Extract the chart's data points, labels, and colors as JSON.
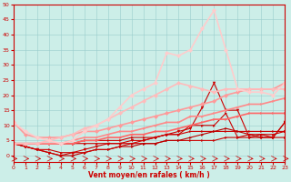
{
  "xlabel": "Vent moyen/en rafales ( km/h )",
  "xlim": [
    0,
    23
  ],
  "ylim": [
    -2,
    50
  ],
  "yticks": [
    0,
    5,
    10,
    15,
    20,
    25,
    30,
    35,
    40,
    45,
    50
  ],
  "xticks": [
    0,
    1,
    2,
    3,
    4,
    5,
    6,
    7,
    8,
    9,
    10,
    11,
    12,
    13,
    14,
    15,
    16,
    17,
    18,
    19,
    20,
    21,
    22,
    23
  ],
  "bg_color": "#cceee8",
  "grid_color": "#99cccc",
  "series": [
    {
      "x": [
        0,
        1,
        2,
        3,
        4,
        5,
        6,
        7,
        8,
        9,
        10,
        11,
        12,
        13,
        14,
        15,
        16,
        17,
        18,
        19,
        20,
        21,
        22,
        23
      ],
      "y": [
        4,
        4,
        4,
        4,
        4,
        4,
        4,
        4,
        4,
        4,
        4,
        4,
        4,
        5,
        5,
        5,
        5,
        5,
        6,
        6,
        6,
        7,
        7,
        8
      ],
      "color": "#cc0000",
      "lw": 0.8,
      "marker": ">",
      "ms": 2.0
    },
    {
      "x": [
        0,
        1,
        2,
        3,
        4,
        5,
        6,
        7,
        8,
        9,
        10,
        11,
        12,
        13,
        14,
        15,
        16,
        17,
        18,
        19,
        20,
        21,
        22,
        23
      ],
      "y": [
        4,
        4,
        4,
        4,
        4,
        4,
        5,
        5,
        5,
        5,
        6,
        6,
        6,
        7,
        7,
        8,
        8,
        8,
        8,
        8,
        8,
        8,
        8,
        8
      ],
      "color": "#cc0000",
      "lw": 0.8,
      "marker": ">",
      "ms": 2.0
    },
    {
      "x": [
        0,
        1,
        2,
        3,
        4,
        5,
        6,
        7,
        8,
        9,
        10,
        11,
        12,
        13,
        14,
        15,
        16,
        17,
        18,
        19,
        20,
        21,
        22,
        23
      ],
      "y": [
        4,
        3,
        2,
        1,
        0,
        0,
        1,
        2,
        2,
        3,
        3,
        4,
        4,
        5,
        5,
        6,
        7,
        8,
        9,
        8,
        7,
        6,
        6,
        11
      ],
      "color": "#bb0000",
      "lw": 0.8,
      "marker": ">",
      "ms": 2.0
    },
    {
      "x": [
        0,
        1,
        2,
        3,
        4,
        5,
        6,
        7,
        8,
        9,
        10,
        11,
        12,
        13,
        14,
        15,
        16,
        17,
        18,
        19,
        20,
        21,
        22,
        23
      ],
      "y": [
        4,
        3,
        2,
        1,
        0,
        1,
        2,
        3,
        4,
        4,
        5,
        5,
        6,
        7,
        8,
        9,
        16,
        24,
        15,
        15,
        6,
        6,
        6,
        11
      ],
      "color": "#cc0000",
      "lw": 0.8,
      "marker": "v",
      "ms": 2.5
    },
    {
      "x": [
        0,
        1,
        2,
        3,
        4,
        5,
        6,
        7,
        8,
        9,
        10,
        11,
        12,
        13,
        14,
        15,
        16,
        17,
        18,
        19,
        20,
        21,
        22,
        23
      ],
      "y": [
        4,
        3,
        2,
        2,
        1,
        1,
        1,
        2,
        2,
        3,
        4,
        5,
        6,
        7,
        7,
        10,
        10,
        10,
        14,
        6,
        7,
        7,
        6,
        6
      ],
      "color": "#cc0000",
      "lw": 0.8,
      "marker": ">",
      "ms": 2.0
    },
    {
      "x": [
        0,
        1,
        2,
        3,
        4,
        5,
        6,
        7,
        8,
        9,
        10,
        11,
        12,
        13,
        14,
        15,
        16,
        17,
        18,
        19,
        20,
        21,
        22,
        23
      ],
      "y": [
        4,
        4,
        4,
        4,
        4,
        4,
        5,
        5,
        6,
        6,
        7,
        7,
        8,
        8,
        9,
        10,
        11,
        12,
        12,
        13,
        14,
        14,
        14,
        14
      ],
      "color": "#ff6666",
      "lw": 1.2,
      "marker": ">",
      "ms": 2.0
    },
    {
      "x": [
        0,
        1,
        2,
        3,
        4,
        5,
        6,
        7,
        8,
        9,
        10,
        11,
        12,
        13,
        14,
        15,
        16,
        17,
        18,
        19,
        20,
        21,
        22,
        23
      ],
      "y": [
        4,
        4,
        4,
        4,
        4,
        5,
        6,
        6,
        7,
        8,
        8,
        9,
        10,
        11,
        11,
        13,
        13,
        14,
        15,
        16,
        17,
        17,
        18,
        19
      ],
      "color": "#ff8888",
      "lw": 1.2,
      "marker": ">",
      "ms": 2.0
    },
    {
      "x": [
        0,
        1,
        2,
        3,
        4,
        5,
        6,
        7,
        8,
        9,
        10,
        11,
        12,
        13,
        14,
        15,
        16,
        17,
        18,
        19,
        20,
        21,
        22,
        23
      ],
      "y": [
        11,
        7,
        6,
        6,
        6,
        7,
        8,
        8,
        9,
        10,
        11,
        12,
        13,
        14,
        15,
        16,
        17,
        18,
        20,
        21,
        22,
        22,
        22,
        24
      ],
      "color": "#ff9999",
      "lw": 1.2,
      "marker": "D",
      "ms": 2.5
    },
    {
      "x": [
        0,
        1,
        2,
        3,
        4,
        5,
        6,
        7,
        8,
        9,
        10,
        11,
        12,
        13,
        14,
        15,
        16,
        17,
        18,
        19,
        20,
        21,
        22,
        23
      ],
      "y": [
        4,
        4,
        4,
        5,
        6,
        7,
        9,
        10,
        12,
        14,
        16,
        18,
        20,
        22,
        24,
        23,
        22,
        21,
        22,
        22,
        22,
        22,
        22,
        22
      ],
      "color": "#ffbbbb",
      "lw": 1.2,
      "marker": "D",
      "ms": 2.5
    },
    {
      "x": [
        0,
        1,
        2,
        3,
        4,
        5,
        6,
        7,
        8,
        9,
        10,
        11,
        12,
        13,
        14,
        15,
        16,
        17,
        18,
        19,
        20,
        21,
        22,
        23
      ],
      "y": [
        11,
        8,
        6,
        5,
        4,
        5,
        8,
        10,
        12,
        16,
        20,
        22,
        24,
        34,
        33,
        35,
        42,
        48,
        35,
        22,
        21,
        21,
        20,
        24
      ],
      "color": "#ffcccc",
      "lw": 1.2,
      "marker": "D",
      "ms": 2.5
    }
  ]
}
